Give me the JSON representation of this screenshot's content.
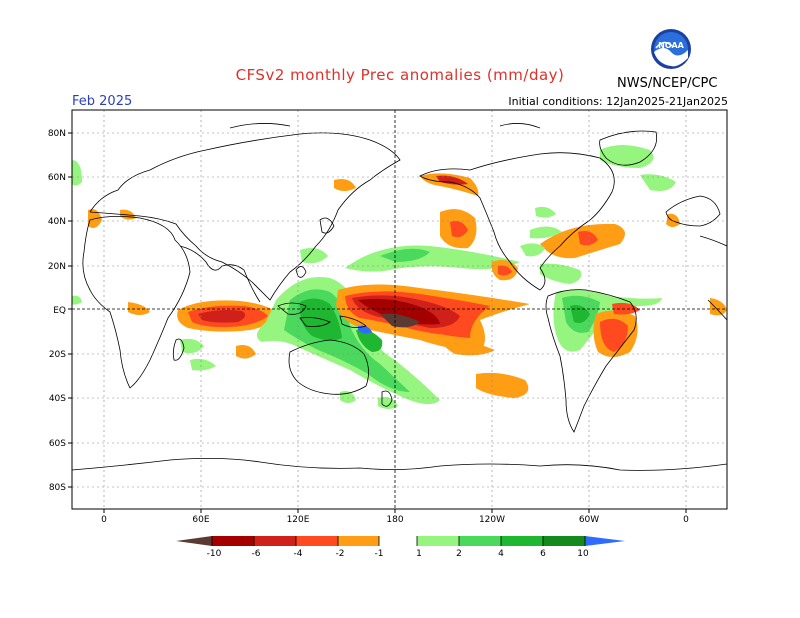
{
  "header": {
    "title": "CFSv2 monthly Prec anomalies (mm/day)",
    "period": "Feb 2025",
    "initial_conditions": "Initial conditions: 12Jan2025-21Jan2025",
    "agency": "NWS/NCEP/CPC",
    "logo_text": "NOAA"
  },
  "axes": {
    "lat_labels": [
      "80N",
      "60N",
      "40N",
      "20N",
      "EQ",
      "20S",
      "40S",
      "60S",
      "80S"
    ],
    "lon_labels": [
      "0",
      "60E",
      "120E",
      "180",
      "120W",
      "60W",
      "0"
    ]
  },
  "legend": {
    "labels": [
      "-10",
      "-6",
      "-4",
      "-2",
      "-1",
      "1",
      "2",
      "4",
      "6",
      "10"
    ],
    "colors": {
      "below_-10": "#5a3a33",
      "-10_-6": "#a50000",
      "-6_-4": "#d0201a",
      "-4_-2": "#ff4a1f",
      "-2_-1": "#ff9d14",
      "1_2": "#95f57f",
      "2_4": "#4bd95d",
      "4_6": "#1fb632",
      "6_10": "#158a1c",
      "above_10": "#2f6bff"
    }
  }
}
